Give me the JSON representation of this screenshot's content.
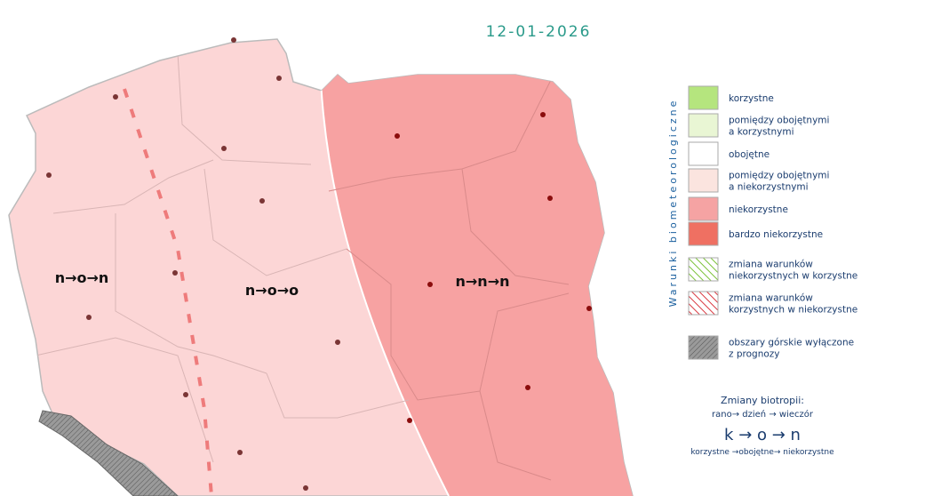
{
  "date": "12-01-2026",
  "regions": [
    {
      "label": "n→o→n"
    },
    {
      "label": "n→o→o"
    },
    {
      "label": "n→n→n"
    }
  ],
  "legend": {
    "title": "Warunki biometeorologiczne",
    "items": [
      {
        "lines": [
          "korzystne"
        ]
      },
      {
        "lines": [
          "pomiędzy obojętnymi",
          "a korzystnymi"
        ]
      },
      {
        "lines": [
          "obojętne"
        ]
      },
      {
        "lines": [
          "pomiędzy obojętnymi",
          "a niekorzystnymi"
        ]
      },
      {
        "lines": [
          "niekorzystne"
        ]
      },
      {
        "lines": [
          "bardzo niekorzystne"
        ]
      },
      {
        "lines": [
          "zmiana warunków",
          "niekorzystnych w korzystne"
        ]
      },
      {
        "lines": [
          "zmiana warunków",
          "korzystnych w niekorzystne"
        ]
      },
      {
        "lines": [
          "obszary górskie wyłączone",
          "z prognozy"
        ]
      }
    ]
  },
  "biotropy": {
    "title": "Zmiany biotropii:",
    "times": "rano→ dzień → wieczór",
    "example": "k → o → n",
    "meaning": "korzystne →obojętne→ niekorzystne"
  }
}
